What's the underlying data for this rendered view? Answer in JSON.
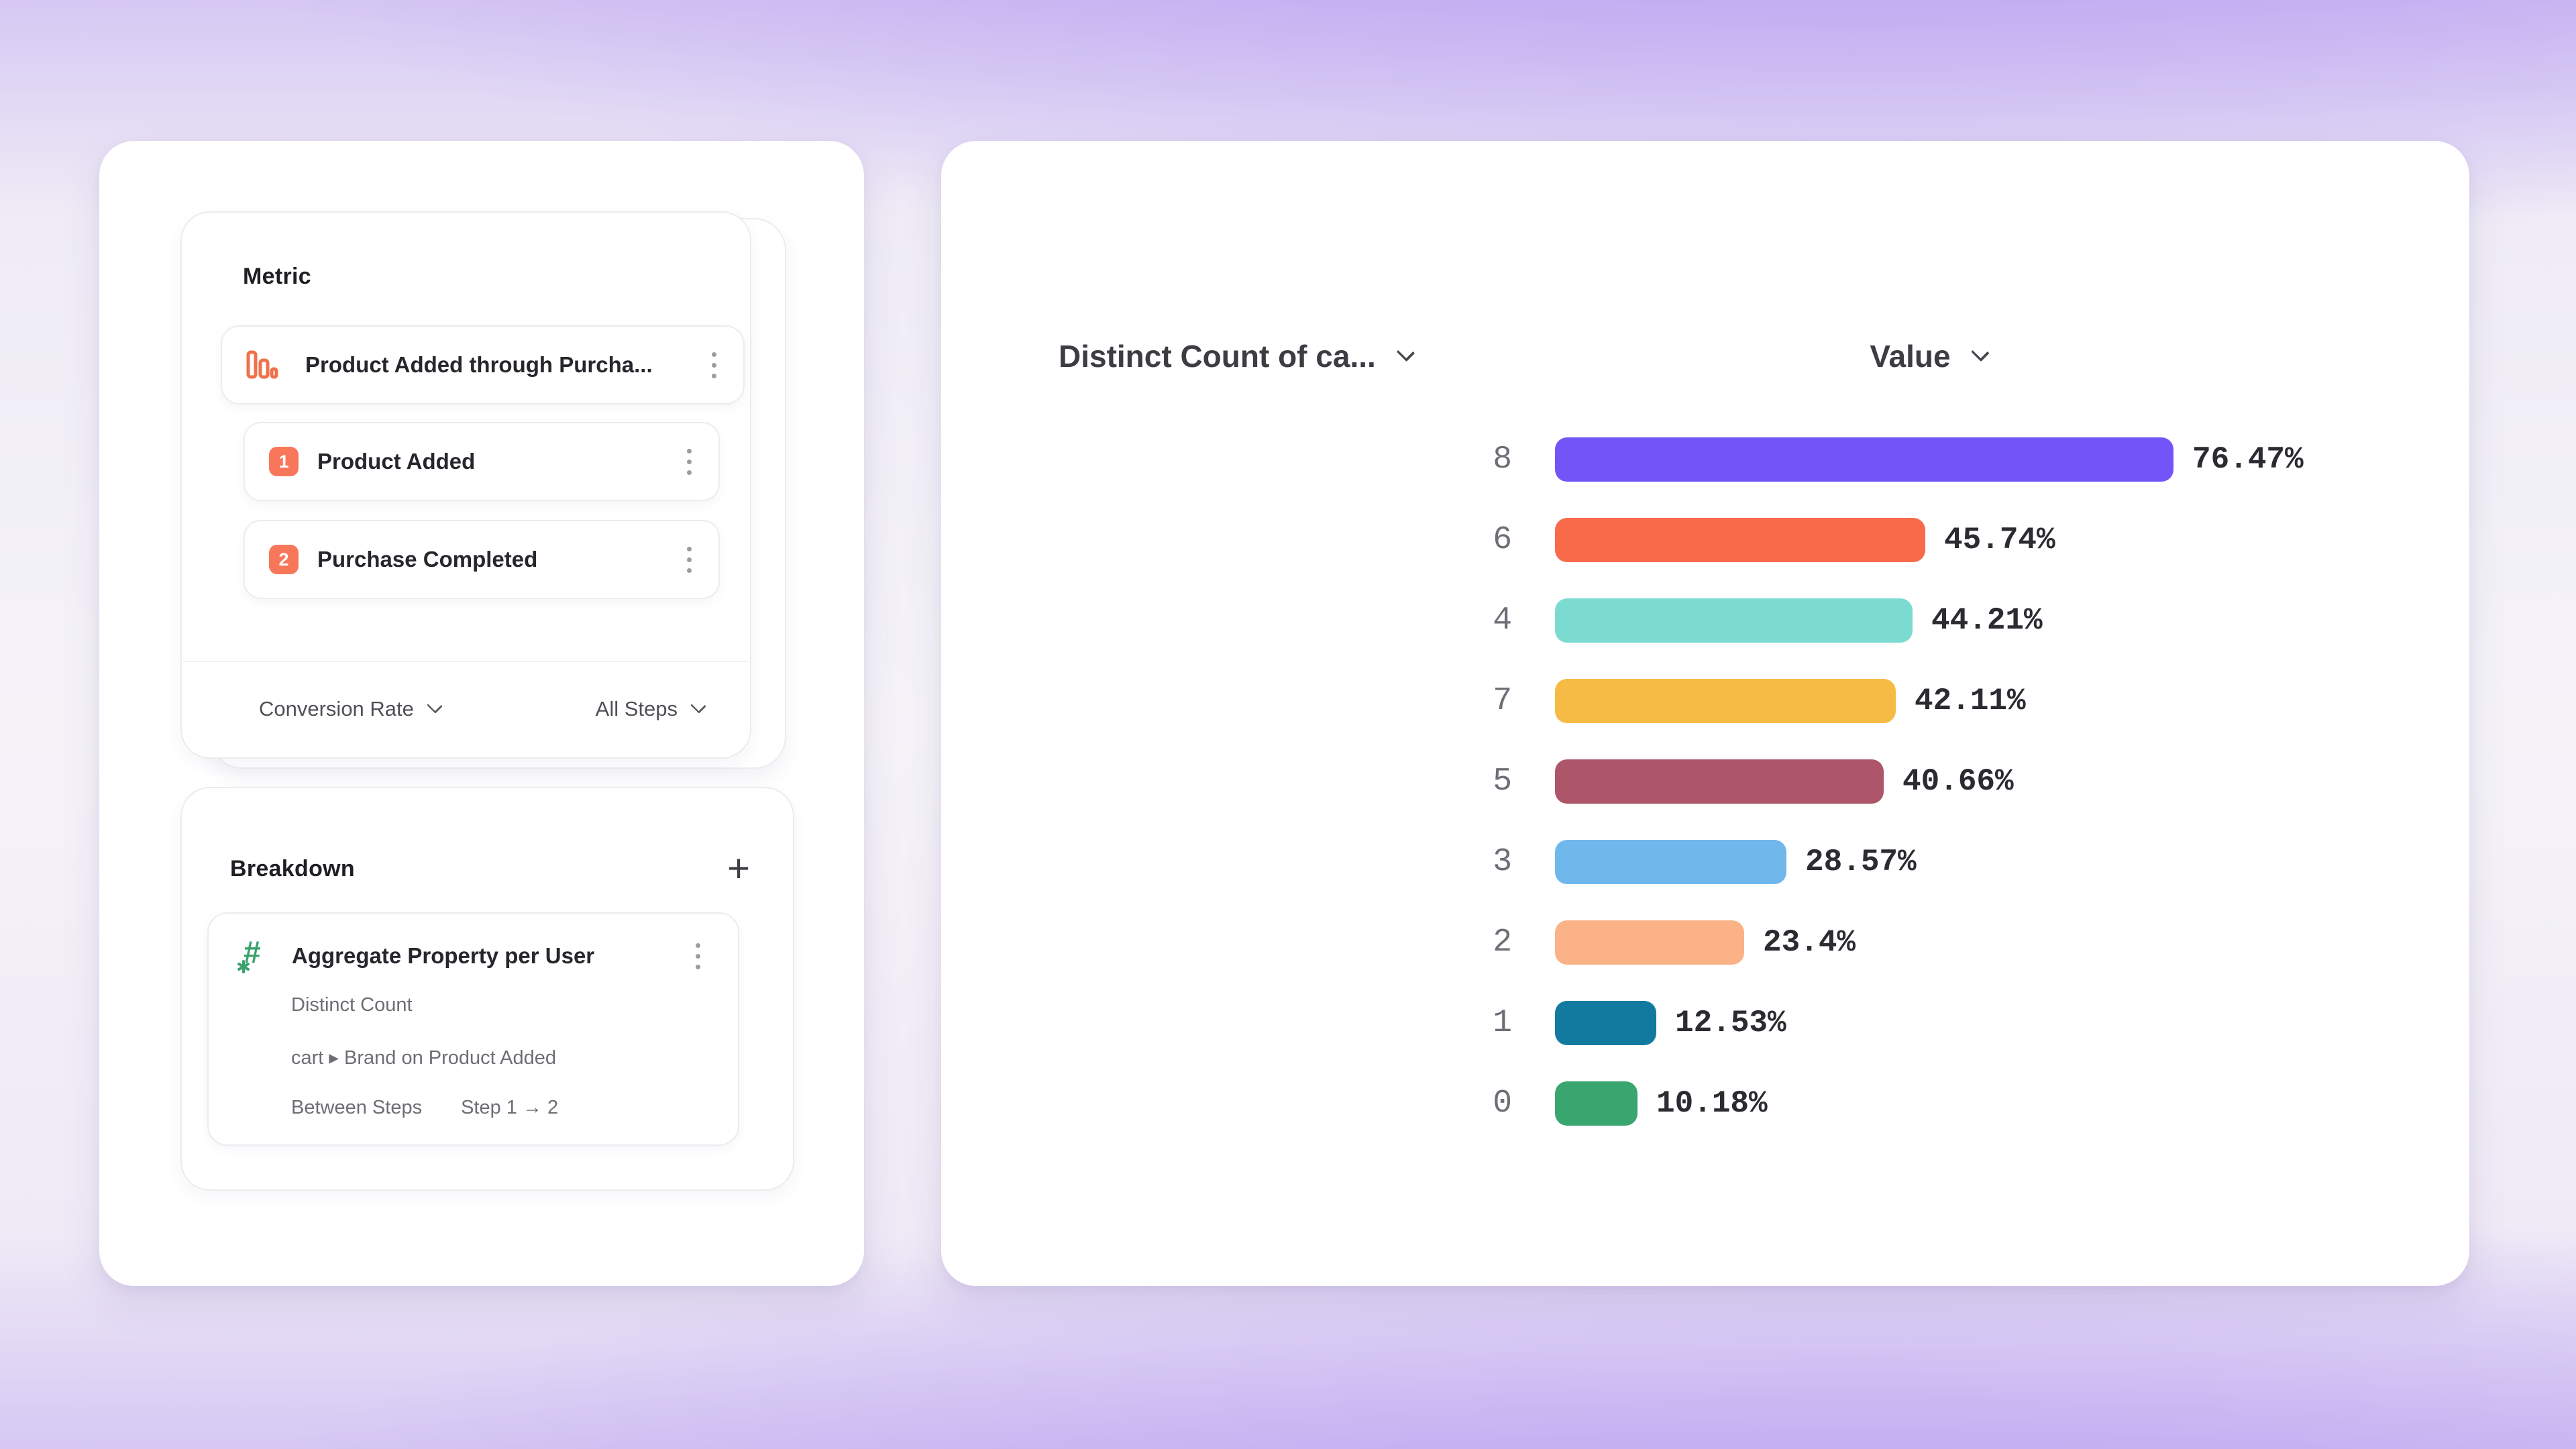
{
  "metric_panel": {
    "title": "Metric",
    "event": {
      "label": "Product Added through Purcha...",
      "icon": "funnel-bars-icon"
    },
    "steps": [
      {
        "index": "1",
        "label": "Product Added"
      },
      {
        "index": "2",
        "label": "Purchase Completed"
      }
    ],
    "footer": {
      "left_label": "Conversion Rate",
      "right_label": "All Steps"
    }
  },
  "breakdown_panel": {
    "title": "Breakdown",
    "add_label": "+",
    "item": {
      "title": "Aggregate Property per User",
      "icon": "hash-asterisk-icon",
      "aggregation": "Distinct Count",
      "property": "cart ▸ Brand on Product Added",
      "scope_label": "Between Steps",
      "scope_value": "Step 1 → 2"
    }
  },
  "chart": {
    "column1_header": "Distinct Count of ca...",
    "column2_header": "Value"
  },
  "chart_data": {
    "type": "bar",
    "orientation": "horizontal",
    "title": "",
    "xlabel": "Value",
    "ylabel": "Distinct Count of ca...",
    "xlim": [
      0,
      80
    ],
    "grid": false,
    "legend": "none",
    "categories": [
      "8",
      "6",
      "4",
      "7",
      "5",
      "3",
      "2",
      "1",
      "0"
    ],
    "values": [
      76.47,
      45.74,
      44.21,
      42.11,
      40.66,
      28.57,
      23.4,
      12.53,
      10.18
    ],
    "value_labels": [
      "76.47%",
      "45.74%",
      "44.21%",
      "42.11%",
      "40.66%",
      "28.57%",
      "23.4%",
      "12.53%",
      "10.18%"
    ],
    "bar_colors": [
      "#7355f7",
      "#f96a4b",
      "#7cdbd1",
      "#f6bb44",
      "#ad5569",
      "#70b8ec",
      "#fbb286",
      "#127a9e",
      "#3aa66f"
    ]
  },
  "icons": {
    "funnel-bars-icon": "three outlined orange bars of descending height",
    "kebab-menu-icon": "⋮",
    "chevron-down-icon": "⌄",
    "plus-icon": "+",
    "hash-asterisk-icon": "green # with small asterisk",
    "caret-right-icon": "▸",
    "arrow-right-icon": "→"
  },
  "colors": {
    "step_badge": "#f8775b",
    "funnel_icon": "#f0714a",
    "aggregate_icon": "#3ba26b",
    "card_border": "#ececef",
    "title_text": "#1e1e24",
    "secondary_text": "#6d6d75",
    "value_text": "#2b2b31",
    "category_text": "#6e6e77",
    "background_purple": "#b094f0"
  }
}
